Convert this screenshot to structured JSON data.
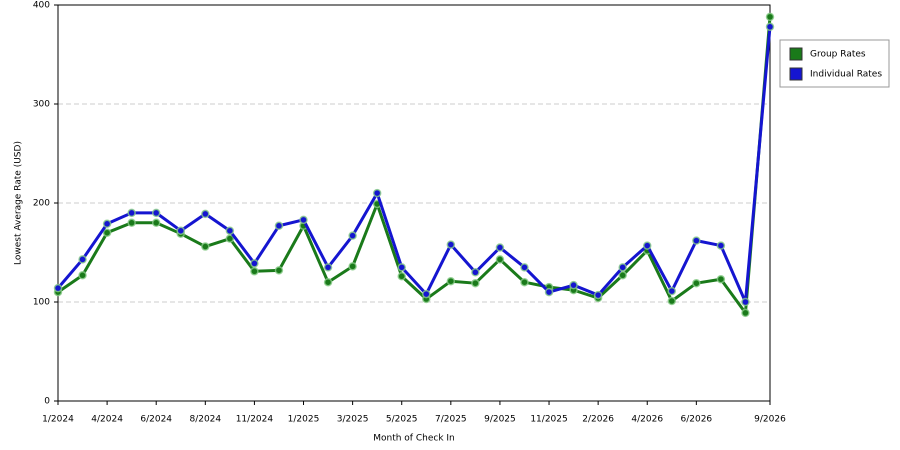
{
  "chart_data": {
    "type": "line",
    "x_label": "Month of Check In",
    "y_label": "Lowest Average Rate (USD)",
    "categories": [
      "1/2024",
      null,
      "4/2024",
      null,
      "6/2024",
      null,
      "8/2024",
      null,
      "11/2024",
      null,
      "1/2025",
      null,
      "3/2025",
      null,
      "5/2025",
      null,
      "7/2025",
      null,
      "9/2025",
      null,
      "11/2025",
      null,
      "2/2026",
      null,
      "4/2026",
      null,
      "6/2026",
      null,
      null,
      "9/2026"
    ],
    "series": [
      {
        "name": "Group Rates",
        "color": "#1a7a1a",
        "values": [
          110,
          127,
          170,
          180,
          180,
          169,
          156,
          164,
          131,
          132,
          177,
          120,
          136,
          199,
          126,
          103,
          121,
          119,
          143,
          120,
          115,
          112,
          104,
          127,
          152,
          101,
          119,
          123,
          89,
          388
        ]
      },
      {
        "name": "Individual Rates",
        "color": "#1515d0",
        "values": [
          114,
          143,
          179,
          190,
          190,
          172,
          189,
          172,
          139,
          177,
          183,
          135,
          167,
          210,
          135,
          108,
          158,
          130,
          155,
          135,
          110,
          117,
          107,
          135,
          157,
          111,
          162,
          157,
          100,
          378
        ]
      }
    ],
    "ylim": [
      0,
      400
    ],
    "yticks": [
      0,
      100,
      200,
      300,
      400
    ],
    "grid": true,
    "legend": "right"
  }
}
